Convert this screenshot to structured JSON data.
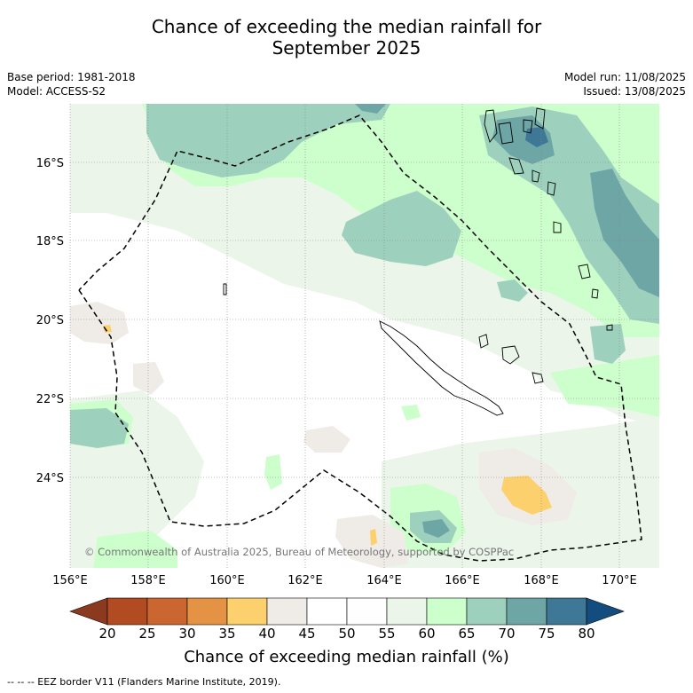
{
  "title": {
    "line1": "Chance of exceeding the median rainfall for",
    "line2": "September 2025"
  },
  "meta": {
    "base_period": "Base period: 1981-2018",
    "model": "Model: ACCESS-S2",
    "model_run": "Model run: 11/08/2025",
    "issued": "Issued: 13/08/2025"
  },
  "map": {
    "lat_labels": [
      "16°S",
      "18°S",
      "20°S",
      "22°S",
      "24°S"
    ],
    "lon_labels": [
      "156°E",
      "158°E",
      "160°E",
      "162°E",
      "164°E",
      "166°E",
      "168°E",
      "170°E"
    ],
    "copyright": "© Commonwealth of Australia 2025, Bureau of Meteorology, supported by COSPPac",
    "features": [
      "New Caledonia",
      "Vanuatu",
      "Loyalty Islands"
    ]
  },
  "colorbar": {
    "ticks": [
      "20",
      "25",
      "30",
      "35",
      "40",
      "45",
      "50",
      "55",
      "60",
      "65",
      "70",
      "75",
      "80"
    ],
    "colors": [
      "#8b3a1f",
      "#b24b22",
      "#cc6630",
      "#e39343",
      "#fdd06e",
      "#efebe7",
      "#ffffff",
      "#fefefe",
      "#ebf5ea",
      "#ccffcc",
      "#9ed1bd",
      "#6ea6a6",
      "#3e7896",
      "#134d80"
    ],
    "label": "Chance of exceeding median rainfall (%)"
  },
  "footnote": "--  --  -- EEZ border V11 (Flanders Marine Institute, 2019)."
}
